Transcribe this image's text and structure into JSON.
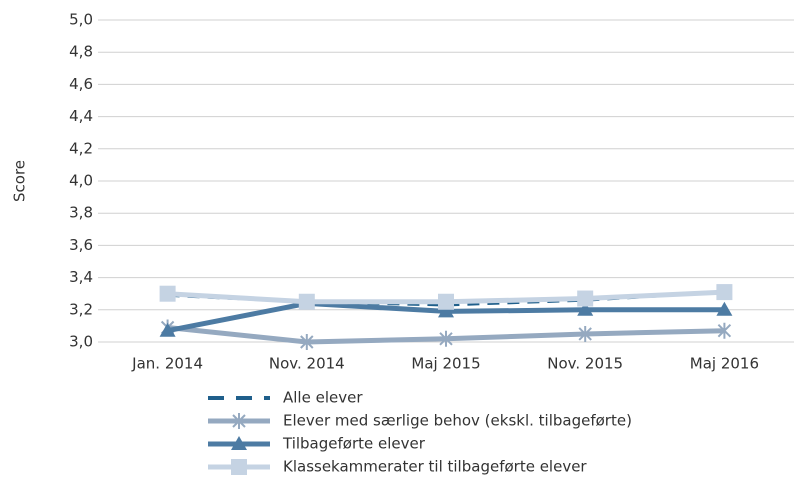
{
  "chart_data": {
    "type": "line",
    "y_label": "Score",
    "categories": [
      "Jan. 2014",
      "Nov. 2014",
      "Maj 2015",
      "Nov. 2015",
      "Maj 2016"
    ],
    "series": [
      {
        "name": "Alle elever",
        "color": "#1f5f8b",
        "dash": true,
        "marker": "none",
        "values": [
          3.29,
          3.25,
          3.23,
          3.26,
          3.31
        ]
      },
      {
        "name": "Elever med særlige behov (ekskl. tilbageførte)",
        "color": "#95a9c0",
        "dash": false,
        "marker": "asterisk",
        "values": [
          3.09,
          3.0,
          3.02,
          3.05,
          3.07
        ]
      },
      {
        "name": "Tilbageførte elever",
        "color": "#4d7ba3",
        "dash": false,
        "marker": "triangle",
        "values": [
          3.07,
          3.24,
          3.19,
          3.2,
          3.2
        ]
      },
      {
        "name": "Klassekammerater til tilbageførte elever",
        "color": "#c5d3e3",
        "dash": false,
        "marker": "square",
        "values": [
          3.3,
          3.25,
          3.25,
          3.27,
          3.31
        ]
      }
    ],
    "ylim": [
      3.0,
      5.0
    ],
    "yticks": [
      {
        "value": 3.0,
        "label": "3,0"
      },
      {
        "value": 3.2,
        "label": "3,2"
      },
      {
        "value": 3.4,
        "label": "3,4"
      },
      {
        "value": 3.6,
        "label": "3,6"
      },
      {
        "value": 3.8,
        "label": "3,8"
      },
      {
        "value": 4.0,
        "label": "4,0"
      },
      {
        "value": 4.2,
        "label": "4,2"
      },
      {
        "value": 4.4,
        "label": "4,4"
      },
      {
        "value": 4.6,
        "label": "4,6"
      },
      {
        "value": 4.8,
        "label": "4,8"
      },
      {
        "value": 5.0,
        "label": "5,0"
      }
    ],
    "grid": true
  }
}
